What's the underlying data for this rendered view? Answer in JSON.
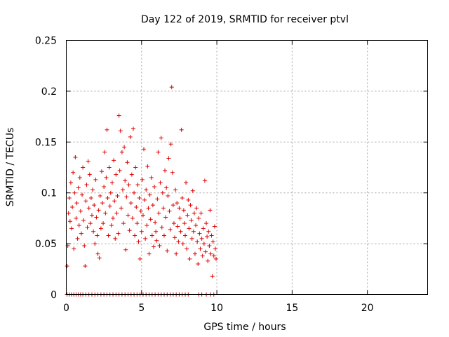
{
  "chart_data": {
    "type": "scatter",
    "title": "Day 122 of 2019, SRMTID for receiver ptvl",
    "xlabel": "GPS time / hours",
    "ylabel": "SRMTID / TECUs",
    "xlim": [
      0,
      24
    ],
    "ylim": [
      0,
      0.25
    ],
    "xticks": [
      0,
      5,
      10,
      15,
      20
    ],
    "xtick_labels": [
      "0",
      "5",
      "10",
      "15",
      "20"
    ],
    "yticks": [
      0,
      0.05,
      0.1,
      0.15,
      0.2,
      0.25
    ],
    "ytick_labels": [
      "0",
      "0.05",
      "0.1",
      "0.15",
      "0.2",
      "0.25"
    ],
    "grid": true,
    "marker": "+",
    "series": [
      {
        "name": "SRMTID",
        "color": "#e00000",
        "points": [
          [
            0.05,
            0.028
          ],
          [
            0.1,
            0.048
          ],
          [
            0.15,
            0.08
          ],
          [
            0.2,
            0.095
          ],
          [
            0.25,
            0.072
          ],
          [
            0.3,
            0.11
          ],
          [
            0.35,
            0.065
          ],
          [
            0.4,
            0.086
          ],
          [
            0.45,
            0.12
          ],
          [
            0.5,
            0.045
          ],
          [
            0.55,
            0.1
          ],
          [
            0.6,
            0.135
          ],
          [
            0.65,
            0.075
          ],
          [
            0.7,
            0.09
          ],
          [
            0.75,
            0.055
          ],
          [
            0.8,
            0.105
          ],
          [
            0.85,
            0.068
          ],
          [
            0.9,
            0.115
          ],
          [
            0.95,
            0.082
          ],
          [
            1.0,
            0.06
          ],
          [
            1.05,
            0.098
          ],
          [
            1.1,
            0.125
          ],
          [
            1.15,
            0.073
          ],
          [
            1.2,
            0.048
          ],
          [
            1.25,
            0.028
          ],
          [
            1.3,
            0.092
          ],
          [
            1.35,
            0.108
          ],
          [
            1.4,
            0.066
          ],
          [
            1.45,
            0.131
          ],
          [
            1.5,
            0.085
          ],
          [
            1.55,
            0.118
          ],
          [
            1.6,
            0.07
          ],
          [
            1.65,
            0.095
          ],
          [
            1.7,
            0.078
          ],
          [
            1.75,
            0.103
          ],
          [
            1.8,
            0.062
          ],
          [
            1.85,
            0.088
          ],
          [
            1.9,
            0.05
          ],
          [
            1.95,
            0.113
          ],
          [
            2.0,
            0.076
          ],
          [
            2.05,
            0.058
          ],
          [
            2.1,
            0.04
          ],
          [
            2.15,
            0.083
          ],
          [
            2.2,
            0.036
          ],
          [
            2.25,
            0.097
          ],
          [
            2.3,
            0.065
          ],
          [
            2.35,
            0.121
          ],
          [
            2.4,
            0.09
          ],
          [
            2.45,
            0.07
          ],
          [
            2.5,
            0.106
          ],
          [
            2.55,
            0.14
          ],
          [
            2.6,
            0.08
          ],
          [
            2.65,
            0.115
          ],
          [
            2.7,
            0.162
          ],
          [
            2.75,
            0.095
          ],
          [
            2.8,
            0.058
          ],
          [
            2.85,
            0.125
          ],
          [
            2.9,
            0.087
          ],
          [
            2.95,
            0.1
          ],
          [
            3.0,
            0.068
          ],
          [
            3.05,
            0.11
          ],
          [
            3.1,
            0.075
          ],
          [
            3.15,
            0.132
          ],
          [
            3.2,
            0.092
          ],
          [
            3.25,
            0.055
          ],
          [
            3.3,
            0.118
          ],
          [
            3.35,
            0.08
          ],
          [
            3.4,
            0.097
          ],
          [
            3.45,
            0.06
          ],
          [
            3.5,
            0.176
          ],
          [
            3.55,
            0.122
          ],
          [
            3.6,
            0.161
          ],
          [
            3.65,
            0.085
          ],
          [
            3.7,
            0.14
          ],
          [
            3.75,
            0.103
          ],
          [
            3.8,
            0.07
          ],
          [
            3.85,
            0.145
          ],
          [
            3.9,
            0.112
          ],
          [
            3.95,
            0.044
          ],
          [
            4.0,
            0.096
          ],
          [
            4.05,
            0.13
          ],
          [
            4.1,
            0.078
          ],
          [
            4.15,
            0.108
          ],
          [
            4.2,
            0.063
          ],
          [
            4.25,
            0.155
          ],
          [
            4.3,
            0.09
          ],
          [
            4.35,
            0.118
          ],
          [
            4.4,
            0.075
          ],
          [
            4.45,
            0.163
          ],
          [
            4.5,
            0.1
          ],
          [
            4.55,
            0.058
          ],
          [
            4.6,
            0.125
          ],
          [
            4.65,
            0.086
          ],
          [
            4.7,
            0.07
          ],
          [
            4.75,
            0.108
          ],
          [
            4.8,
            0.052
          ],
          [
            4.85,
            0.095
          ],
          [
            4.9,
            0.035
          ],
          [
            4.95,
            0.082
          ],
          [
            5.0,
            0.062
          ],
          [
            5.05,
            0.113
          ],
          [
            5.1,
            0.078
          ],
          [
            5.15,
            0.143
          ],
          [
            5.2,
            0.093
          ],
          [
            5.25,
            0.055
          ],
          [
            5.3,
            0.103
          ],
          [
            5.35,
            0.068
          ],
          [
            5.4,
            0.126
          ],
          [
            5.45,
            0.085
          ],
          [
            5.5,
            0.04
          ],
          [
            5.55,
            0.098
          ],
          [
            5.6,
            0.074
          ],
          [
            5.65,
            0.115
          ],
          [
            5.7,
            0.058
          ],
          [
            5.75,
            0.088
          ],
          [
            5.8,
            0.047
          ],
          [
            5.85,
            0.106
          ],
          [
            5.9,
            0.071
          ],
          [
            5.95,
            0.062
          ],
          [
            6.0,
            0.053
          ],
          [
            6.05,
            0.094
          ],
          [
            6.1,
            0.14
          ],
          [
            6.15,
            0.08
          ],
          [
            6.2,
            0.048
          ],
          [
            6.25,
            0.11
          ],
          [
            6.3,
            0.154
          ],
          [
            6.35,
            0.066
          ],
          [
            6.4,
            0.1
          ],
          [
            6.45,
            0.085
          ],
          [
            6.5,
            0.058
          ],
          [
            6.55,
            0.122
          ],
          [
            6.6,
            0.076
          ],
          [
            6.65,
            0.105
          ],
          [
            6.7,
            0.043
          ],
          [
            6.75,
            0.097
          ],
          [
            6.8,
            0.134
          ],
          [
            6.85,
            0.082
          ],
          [
            6.9,
            0.064
          ],
          [
            6.95,
            0.148
          ],
          [
            7.0,
            0.204
          ],
          [
            7.05,
            0.12
          ],
          [
            7.1,
            0.088
          ],
          [
            7.15,
            0.07
          ],
          [
            7.2,
            0.056
          ],
          [
            7.25,
            0.103
          ],
          [
            7.3,
            0.04
          ],
          [
            7.35,
            0.09
          ],
          [
            7.4,
            0.067
          ],
          [
            7.45,
            0.052
          ],
          [
            7.5,
            0.085
          ],
          [
            7.55,
            0.075
          ],
          [
            7.6,
            0.062
          ],
          [
            7.65,
            0.162
          ],
          [
            7.7,
            0.095
          ],
          [
            7.75,
            0.05
          ],
          [
            7.8,
            0.083
          ],
          [
            7.85,
            0.07
          ],
          [
            7.9,
            0.058
          ],
          [
            7.95,
            0.11
          ],
          [
            8.0,
            0.045
          ],
          [
            8.05,
            0.078
          ],
          [
            8.1,
            0.093
          ],
          [
            8.15,
            0.065
          ],
          [
            8.2,
            0.035
          ],
          [
            8.25,
            0.088
          ],
          [
            8.3,
            0.073
          ],
          [
            8.35,
            0.055
          ],
          [
            8.4,
            0.102
          ],
          [
            8.45,
            0.062
          ],
          [
            8.5,
            0.08
          ],
          [
            8.55,
            0.04
          ],
          [
            8.6,
            0.068
          ],
          [
            8.65,
            0.085
          ],
          [
            8.7,
            0.052
          ],
          [
            8.75,
            0.03
          ],
          [
            8.8,
            0.075
          ],
          [
            8.85,
            0.06
          ],
          [
            8.9,
            0.045
          ],
          [
            8.95,
            0.08
          ],
          [
            9.0,
            0.055
          ],
          [
            9.05,
            0.038
          ],
          [
            9.1,
            0.065
          ],
          [
            9.15,
            0.05
          ],
          [
            9.2,
            0.112
          ],
          [
            9.25,
            0.042
          ],
          [
            9.3,
            0.07
          ],
          [
            9.35,
            0.057
          ],
          [
            9.4,
            0.033
          ],
          [
            9.45,
            0.062
          ],
          [
            9.5,
            0.048
          ],
          [
            9.55,
            0.083
          ],
          [
            9.6,
            0.04
          ],
          [
            9.65,
            0.058
          ],
          [
            9.7,
            0.018
          ],
          [
            9.75,
            0.052
          ],
          [
            9.8,
            0.038
          ],
          [
            9.85,
            0.067
          ],
          [
            9.9,
            0.045
          ],
          [
            9.95,
            0.035
          ]
        ],
        "zero_points_x": [
          0.05,
          0.2,
          0.35,
          0.5,
          0.65,
          0.8,
          0.95,
          1.1,
          1.3,
          1.5,
          1.7,
          1.9,
          2.1,
          2.3,
          2.5,
          2.7,
          2.9,
          3.1,
          3.3,
          3.5,
          3.7,
          3.9,
          4.1,
          4.3,
          4.5,
          4.7,
          4.9,
          5.1,
          5.3,
          5.5,
          5.7,
          5.9,
          6.1,
          6.3,
          6.5,
          6.7,
          6.9,
          7.1,
          7.3,
          7.5,
          7.7,
          7.9,
          8.1,
          8.8,
          9.0,
          9.3,
          9.6,
          9.8
        ]
      }
    ]
  }
}
